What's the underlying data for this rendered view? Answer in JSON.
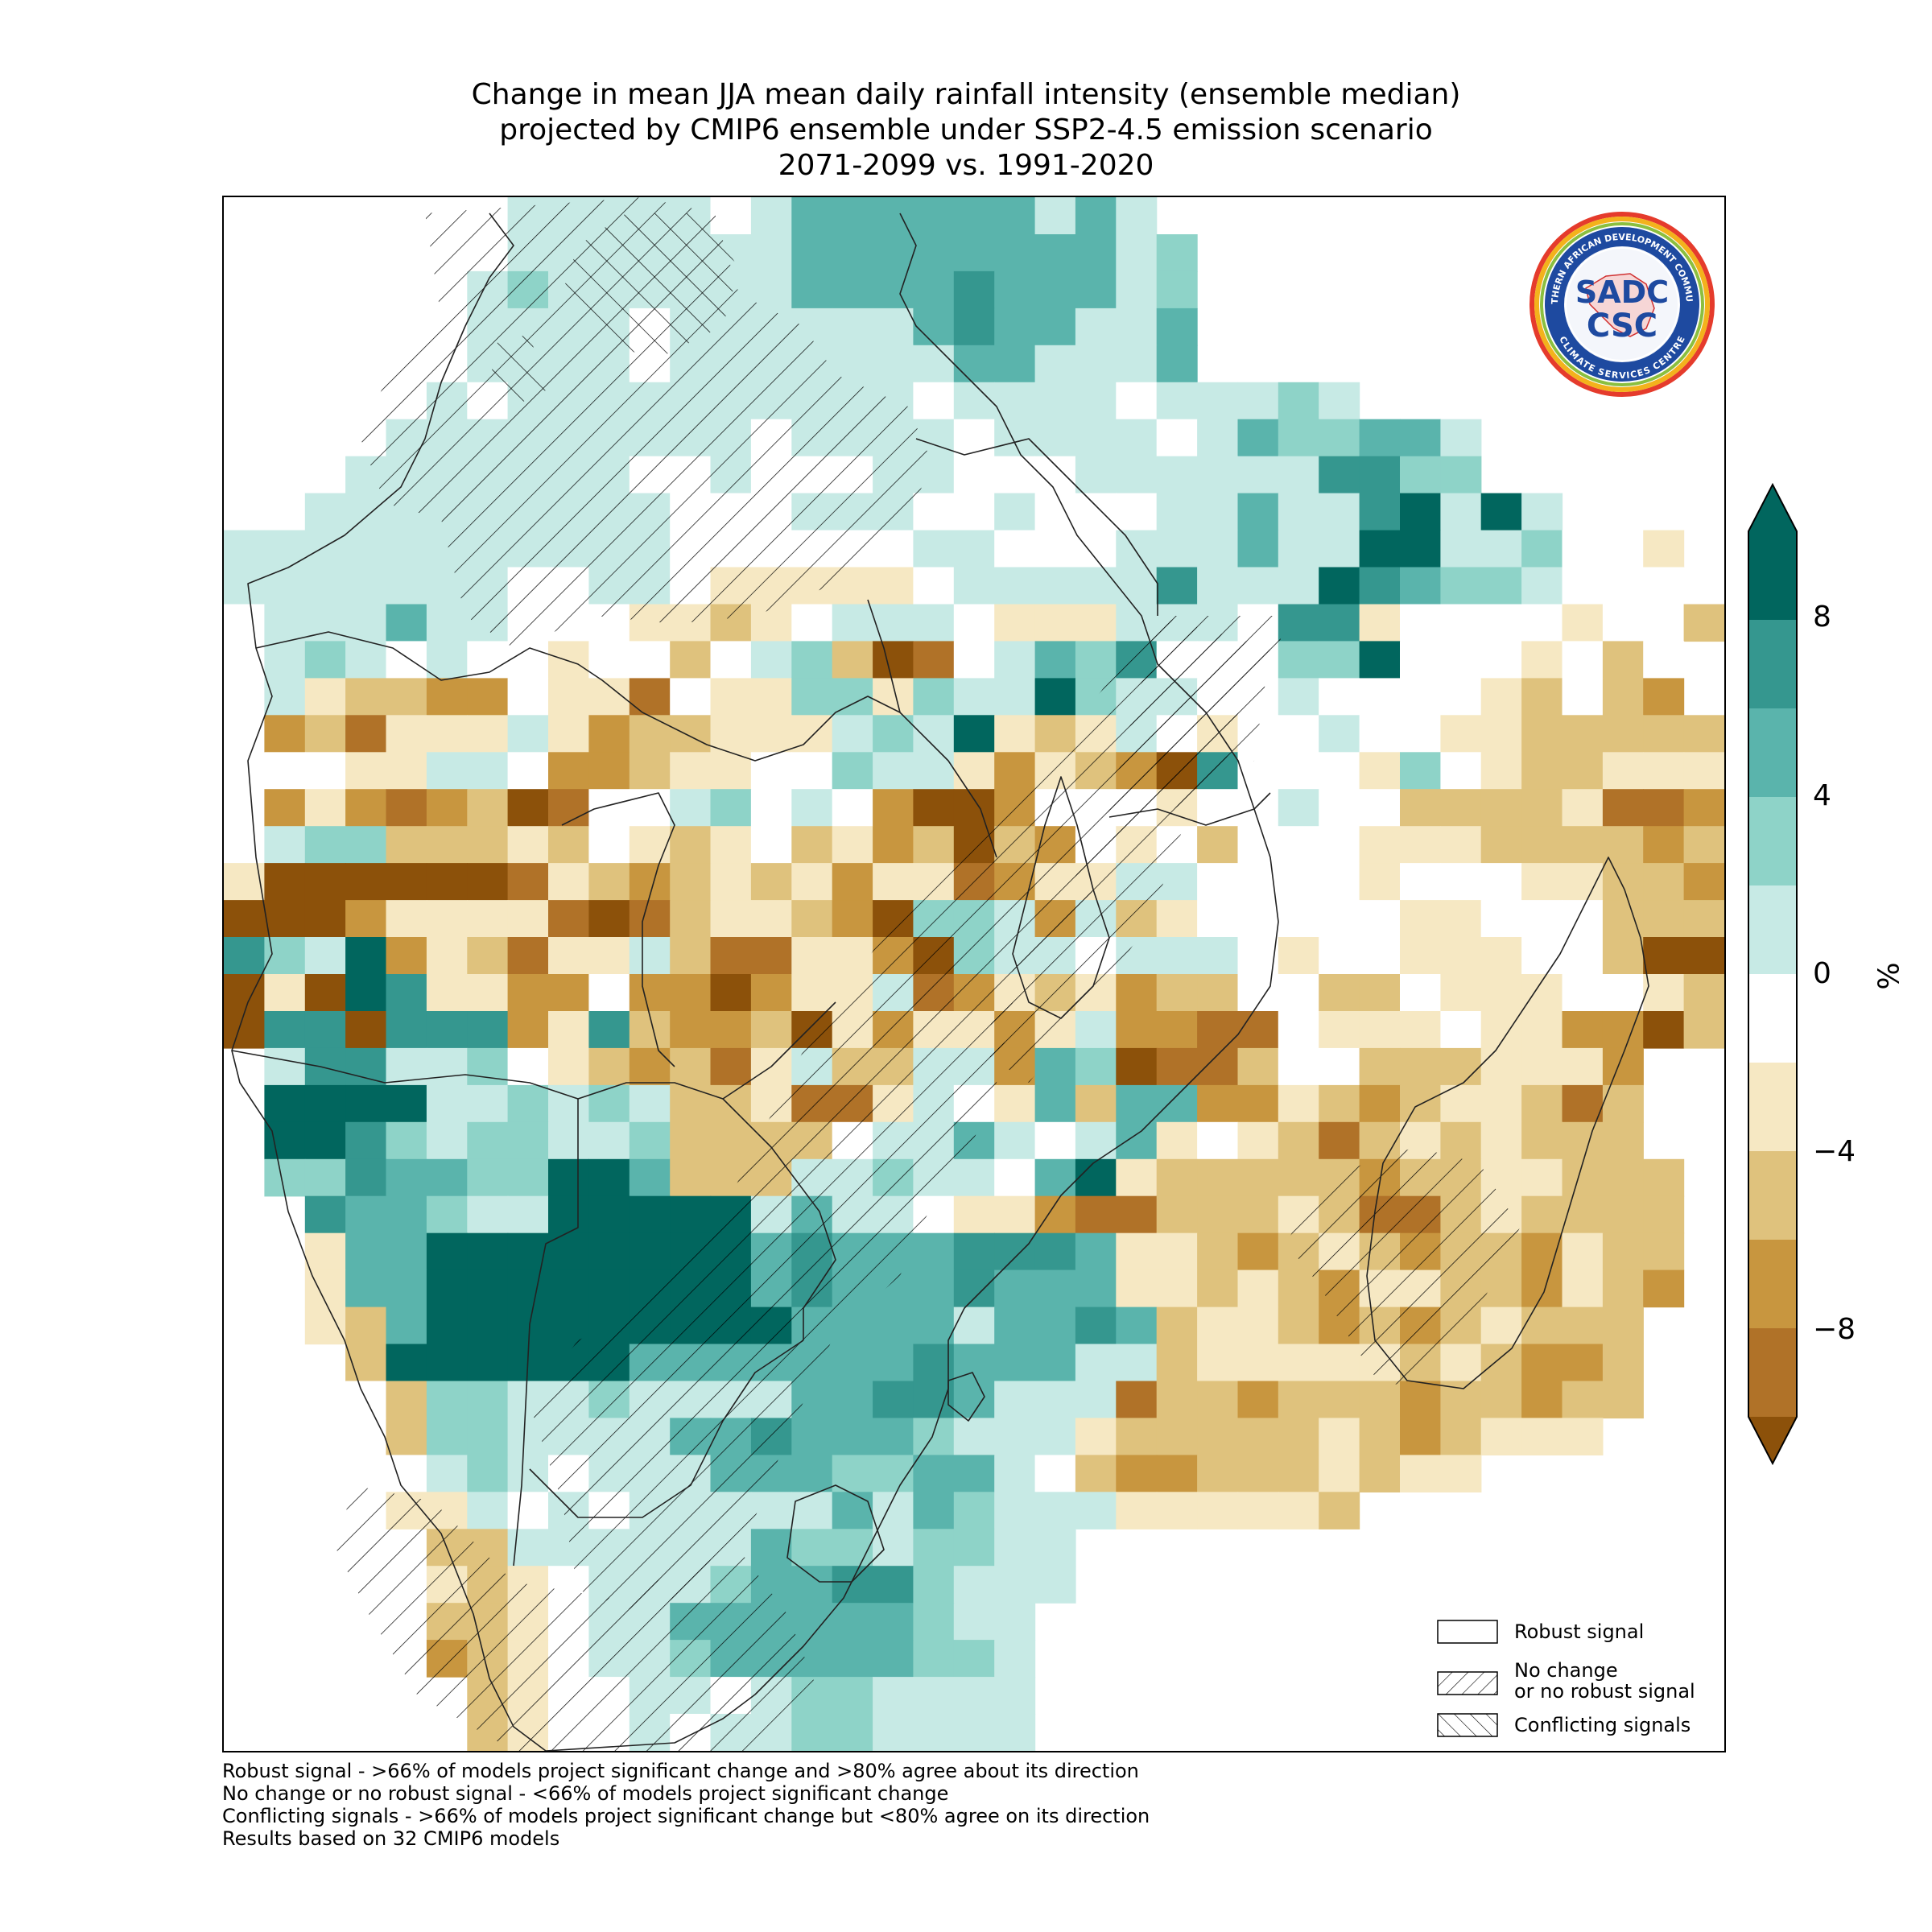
{
  "title": {
    "line1": "Change in mean JJA mean daily rainfall intensity (ensemble median)",
    "line2": "projected by CMIP6 ensemble under SSP2-4.5 emission scenario",
    "line3": "2071-2099 vs. 1991-2020"
  },
  "colorbar": {
    "unit": "%",
    "ticks": [
      "8",
      "4",
      "0",
      "−4",
      "−8"
    ],
    "levels": [
      {
        "value": 10,
        "color": "#01665e"
      },
      {
        "value": 8,
        "color": "#35978f"
      },
      {
        "value": 6,
        "color": "#5ab4ac"
      },
      {
        "value": 4,
        "color": "#8ed3c8"
      },
      {
        "value": 2,
        "color": "#c7eae5"
      },
      {
        "value": 0,
        "color": "#ffffff"
      },
      {
        "value": -2,
        "color": "#f6e8c3"
      },
      {
        "value": -4,
        "color": "#dfc27d"
      },
      {
        "value": -6,
        "color": "#c8963f"
      },
      {
        "value": -8,
        "color": "#b07228"
      },
      {
        "value": -10,
        "color": "#8c510a"
      }
    ]
  },
  "logo": {
    "outer_text": "SOUTHERN AFRICAN DEVELOPMENT COMMUNITY",
    "inner_text": "CLIMATE SERVICES CENTRE",
    "mark_top": "SADC",
    "mark_bottom": "CSC"
  },
  "legend": {
    "items": [
      {
        "label": "Robust signal",
        "pattern": "none"
      },
      {
        "label_line1": "No change",
        "label_line2": "or no robust signal",
        "pattern": "forward-hatch"
      },
      {
        "label": "Conflicting signals",
        "pattern": "back-hatch"
      }
    ]
  },
  "footnotes": [
    "Robust signal - >66% of models project significant change and >80% agree about its direction",
    "No change or no robust signal - <66% of models project significant change",
    "Conflicting signals - >66% of models project significant change but <80% agree on its direction",
    "Results based on 32 CMIP6 models"
  ],
  "map_grid": {
    "legend_codes": {
      "D": 10,
      "C": 8,
      "B": 6,
      "A": 4,
      "a": 2,
      ".": 0,
      "b": -2,
      "c": -4,
      "d": -6,
      "e": -8,
      "f": -10,
      "_": null
    },
    "rows": [
      "_______aaaaa.aBBBBBBaBa_________________________________",
      "_______aaaaaaaBBBBBBBBaA________________________________",
      "______aAaaaaaaBBBBCBBBaA________________________________",
      "______aaaa.aaaaaaBCBBaaB________________________________",
      "______aaaa.aaaaaaaBBaaaB________________________________",
      "_____a.aaaaaaaaaa.aaaa.aaaAa____________________________",
      "____aaaaaaaaa.aaaa.aaaa.aBAABBa_________________________",
      "___aaaaaaa..a...aa...aaaaaaCCAA_________________________",
      "__aaaaaaaaa...aaa..a...aaBaaCDaDa_______________________",
      "aaaaaaaaaaa......aa...aaaBaaDDaaA..b____________________",
      "aaaaaaa..aa.bbbbb.aaaaaCaaaDCBAAa...____________________",
      ".aaaBaa...bbcb.aaa.bbbaaa.CCb....b..cd__________________",
      "_aAa.a..b..c.aAcfe.aBAC...AAD...b.c.____________________",
      "_abccdd.bbe.bbAAbAaaDAaa..a....bc.cd____________________",
      "_dcebbbabdccbbbaAaDbcba.b..a..bbccccc___________________",
      "_..bbaa.ddcbb..AaabdbcdfC...bA.bccbbbc__________________",
      "_dbdedcfe..aA.a.dffd...b..a..ccccbeed___________________",
      "_aAAcccbc.bcb.cbdcfcd.b.c...bbbccccdcb__________________",
      "bffffffebcdcbcbdbbedbbaa....b...bbccdd__________________",
      "fffdbbbbefecbbcdfAAadacb.....bb...cccdfe____________eb__",
      "CAaDdbcebbaceebbdfAaa.aaa.b..bbb..cffefb__________dcbbab",
      "fbfDCbbdd.ddfdbbaedbcbdcc..cc.bbb..bcff___________bcdcca",
      "fCCfCCCdbCcddcfbdbbdbaddee.bbb.bbddfc_____________bcebba",
      "_aCCaaA.bcdcebaccaadBAfeec..cccbbbd_______________.bcbcb",
      "_DDDDaaAaAaccbeeba.bBcBBddbcdcbbcec_______________bcccbc",
      "_DDCAaAAaaAcccc.aaBa.aBb.bcecbcbccc______________bbbdbff",
      "_AACBBAADDBcccaaAaa.BDbcccccdccbbccc_____________bb.ccbcd",
      "__CBBAaaDDDDDaBaa.bbdeecccbceecbcccc_____________b.bbcb..",
      "_.bBBDDDDDDDDBCBBBCCCBbbcdcbcdccdbcc_____________bbb.beb_",
      "_.bBBDDDDDDDDBCBBBCBBBbbcbcdbbccdbcd_____________b.bcbee_",
      "__bcBDDDDDDDDDBBBBaBBCBcbbcdcdcbccc______________bbbbbde_",
      "___cDDDDDDBBBBBBBCBBBaacbbbbbcbcddc______________bb.bbbe_",
      "___.cAAaaAaaaaBBCCBaaaeccdcccdccdcc______________bb.bbce_",
      "___.cAAaaaaBBCBBBAaaabcccccbcdcbbb______________bbbb.ce__",
      "____.aAa.aaaBBBAABBa.cddcccbcbb__________________b.bbcb__",
      "____bba.a.aaaaaBaBAaaabbbbbc_____________________b.bcc___",
      "_____ccaaaaaaBAAaAAaa__________________________________",
      "_____bcb.aaaABBCCAaaa__________________________________",
      "_____ccb.aaBBBBBBAaa___________________________________",
      "_____dcb.aaABBBBBAAa___________________________________",
      "______cb..aa.aAAaaaa___________________________________",
      "______cb..a.aaAAaaaa___________________________________",
      "______cbb....aaaaa_____________________________________",
      "______bcbb...aAaaa_____________________________________",
      "_______bbb.....bb_______________________________________",
      "_______bbbb....bb_______________________________________"
    ]
  }
}
